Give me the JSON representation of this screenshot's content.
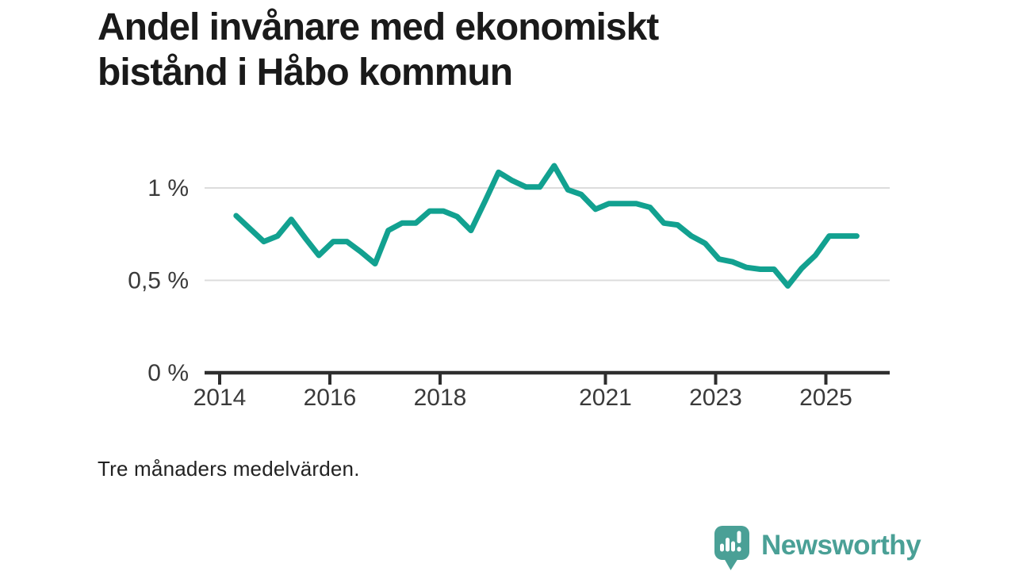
{
  "page": {
    "background": "#ffffff"
  },
  "header": {
    "title_lines": [
      "Andel invånare med ekonomiskt",
      "bistånd i Håbo kommun"
    ]
  },
  "chart_data": {
    "type": "line",
    "title": "Andel invånare med ekonomiskt bistånd i Håbo kommun",
    "note": "Tre månaders medelvärden.",
    "unit": "%",
    "xlabel": "",
    "ylabel": "",
    "xlim": [
      2013.73,
      2026.1
    ],
    "ylim": [
      0,
      1.21
    ],
    "grid": "horizontal-only",
    "legend": "none",
    "x_ticks": [
      {
        "value": 2014,
        "label": "2014"
      },
      {
        "value": 2016,
        "label": "2016"
      },
      {
        "value": 2018,
        "label": "2018"
      },
      {
        "value": 2021,
        "label": "2021"
      },
      {
        "value": 2023,
        "label": "2023"
      },
      {
        "value": 2025,
        "label": "2025"
      }
    ],
    "y_ticks": [
      {
        "value": 1,
        "label": "1 %"
      },
      {
        "value": 0.5,
        "label": "0,5 %"
      },
      {
        "value": 0,
        "label": "0 %"
      }
    ],
    "series": [
      {
        "name": "Andel invånare med ekonomiskt bistånd, Håbo kommun",
        "color": "#12A190",
        "points": [
          [
            2014.3,
            0.85
          ],
          [
            2014.55,
            0.78
          ],
          [
            2014.8,
            0.71
          ],
          [
            2015.05,
            0.74
          ],
          [
            2015.3,
            0.83
          ],
          [
            2015.55,
            0.73
          ],
          [
            2015.8,
            0.635
          ],
          [
            2016.06,
            0.71
          ],
          [
            2016.31,
            0.71
          ],
          [
            2016.56,
            0.655
          ],
          [
            2016.82,
            0.59
          ],
          [
            2017.06,
            0.77
          ],
          [
            2017.31,
            0.81
          ],
          [
            2017.56,
            0.81
          ],
          [
            2017.81,
            0.875
          ],
          [
            2018.06,
            0.875
          ],
          [
            2018.31,
            0.845
          ],
          [
            2018.56,
            0.77
          ],
          [
            2018.81,
            0.925
          ],
          [
            2019.06,
            1.085
          ],
          [
            2019.31,
            1.04
          ],
          [
            2019.56,
            1.005
          ],
          [
            2019.81,
            1.005
          ],
          [
            2020.07,
            1.12
          ],
          [
            2020.32,
            0.99
          ],
          [
            2020.56,
            0.965
          ],
          [
            2020.82,
            0.885
          ],
          [
            2021.06,
            0.915
          ],
          [
            2021.31,
            0.915
          ],
          [
            2021.56,
            0.915
          ],
          [
            2021.81,
            0.895
          ],
          [
            2022.06,
            0.81
          ],
          [
            2022.31,
            0.8
          ],
          [
            2022.56,
            0.74
          ],
          [
            2022.81,
            0.7
          ],
          [
            2023.06,
            0.615
          ],
          [
            2023.31,
            0.6
          ],
          [
            2023.56,
            0.57
          ],
          [
            2023.81,
            0.56
          ],
          [
            2024.06,
            0.56
          ],
          [
            2024.31,
            0.47
          ],
          [
            2024.56,
            0.565
          ],
          [
            2024.81,
            0.635
          ],
          [
            2025.06,
            0.74
          ],
          [
            2025.31,
            0.74
          ],
          [
            2025.56,
            0.74
          ]
        ]
      }
    ]
  },
  "footer": {
    "note": "Tre månaders medelvärden."
  },
  "branding": {
    "name": "Newsworthy",
    "color": "#4AA096",
    "icon": "newsworthy-speech-bubble-bar-chart"
  }
}
